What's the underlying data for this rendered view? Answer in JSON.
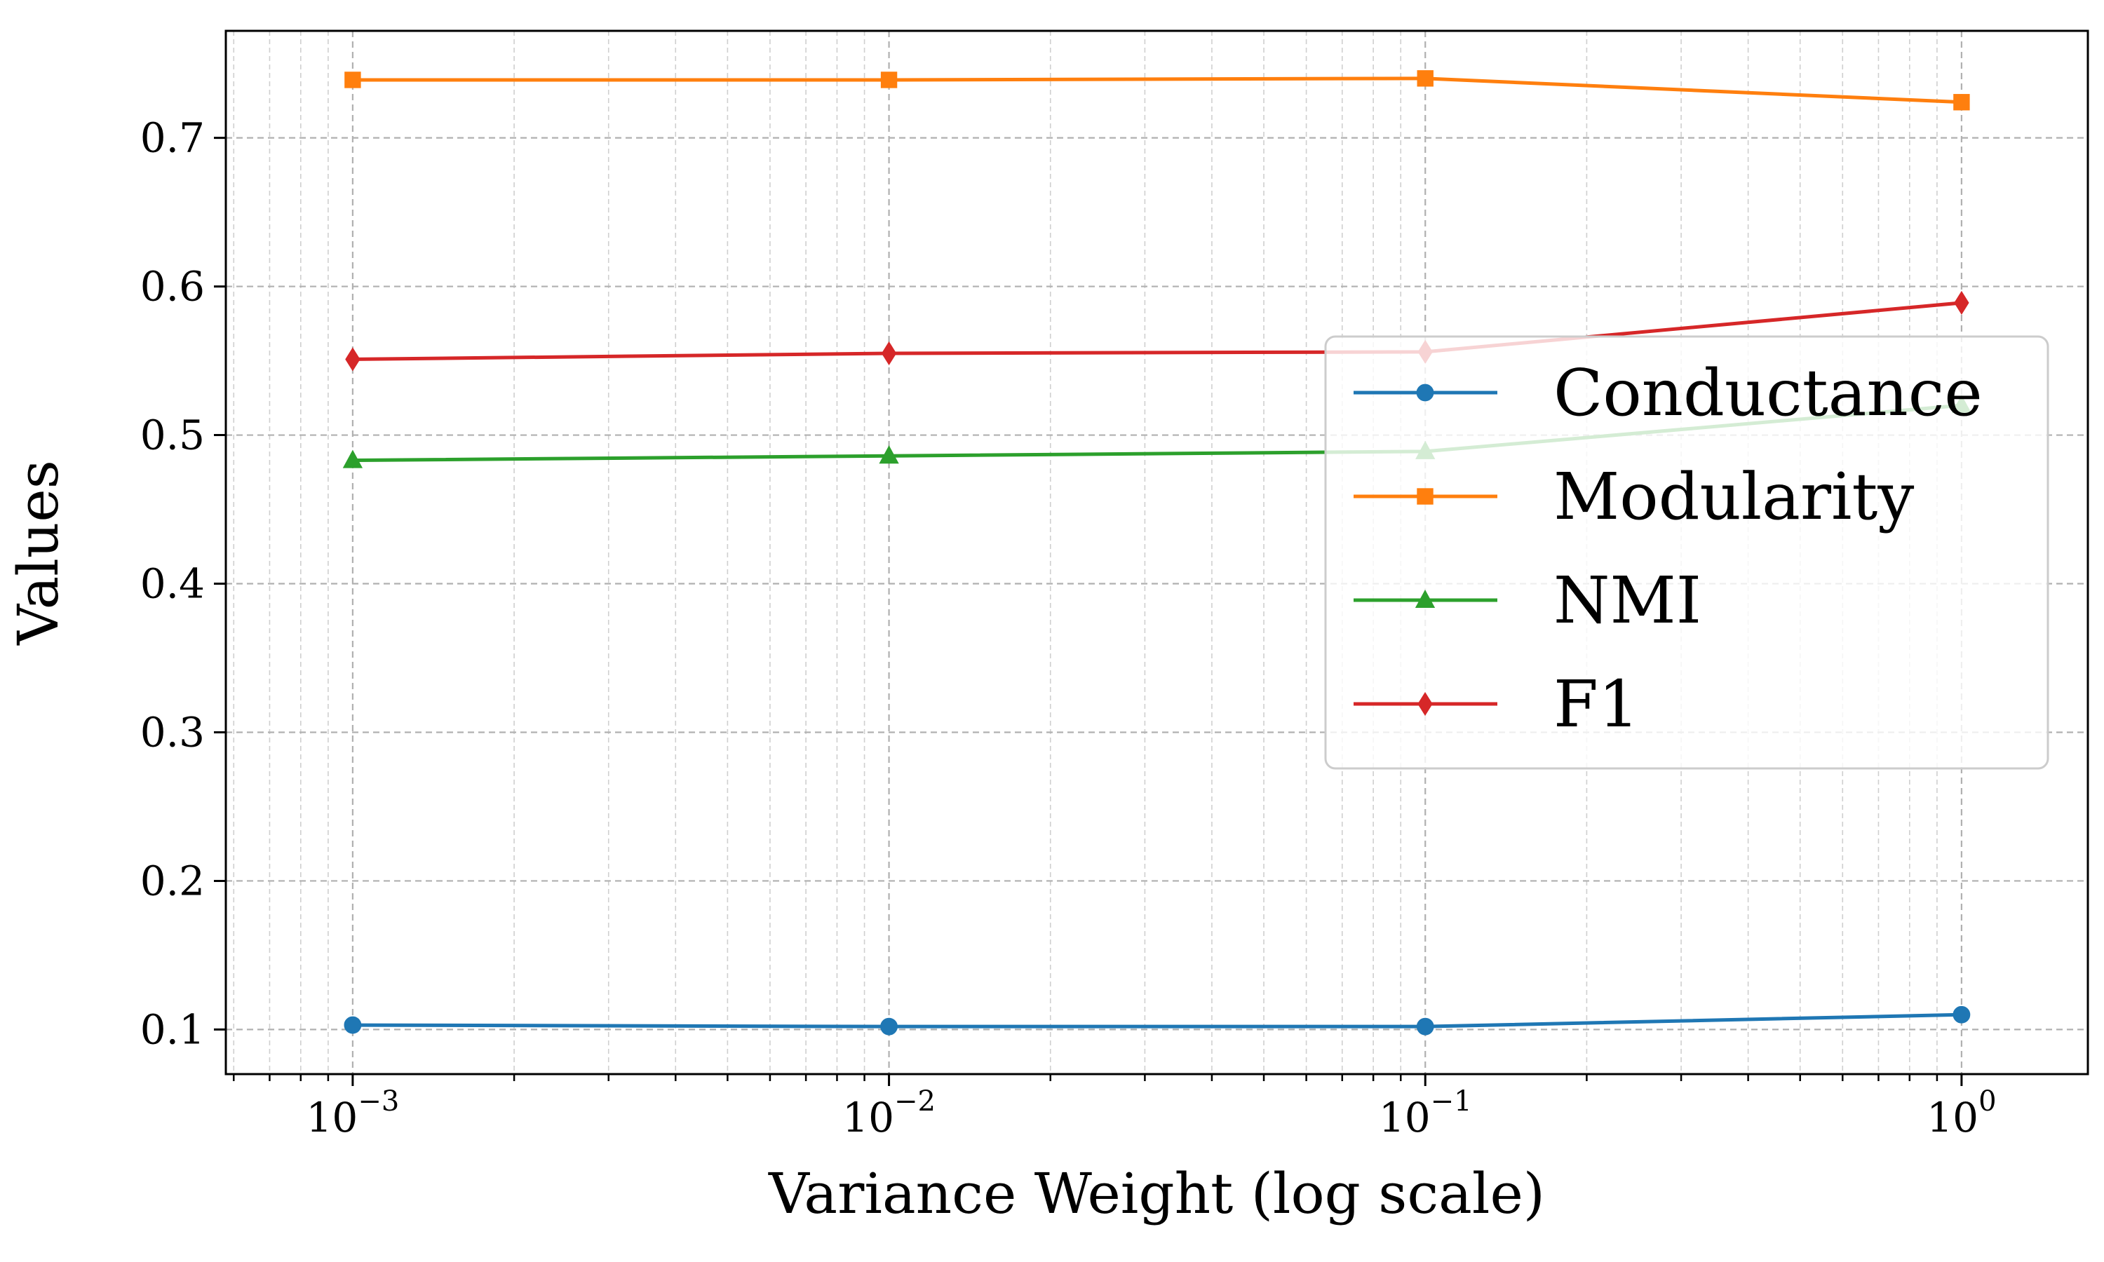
{
  "chart_data": {
    "type": "line",
    "title": "",
    "xlabel": "Variance Weight (log scale)",
    "ylabel": "Values",
    "xscale": "log",
    "x": [
      0.001,
      0.01,
      0.1,
      1
    ],
    "xlim": [
      0.00058,
      1.72
    ],
    "ylim": [
      0.07,
      0.772
    ],
    "xticks": [
      {
        "value": 0.001,
        "base": "10",
        "exp": "−3"
      },
      {
        "value": 0.01,
        "base": "10",
        "exp": "−2"
      },
      {
        "value": 0.1,
        "base": "10",
        "exp": "−1"
      },
      {
        "value": 1,
        "base": "10",
        "exp": "0"
      }
    ],
    "yticks": [
      {
        "value": 0.1,
        "label": "0.1"
      },
      {
        "value": 0.2,
        "label": "0.2"
      },
      {
        "value": 0.3,
        "label": "0.3"
      },
      {
        "value": 0.4,
        "label": "0.4"
      },
      {
        "value": 0.5,
        "label": "0.5"
      },
      {
        "value": 0.6,
        "label": "0.6"
      },
      {
        "value": 0.7,
        "label": "0.7"
      }
    ],
    "grid": true,
    "legend_position": "center-right",
    "series": [
      {
        "name": "Conductance",
        "color": "#1f77b4",
        "marker": "circle",
        "values": [
          0.103,
          0.102,
          0.102,
          0.11
        ]
      },
      {
        "name": "Modularity",
        "color": "#ff7f0e",
        "marker": "square",
        "values": [
          0.739,
          0.739,
          0.74,
          0.724
        ]
      },
      {
        "name": "NMI",
        "color": "#2ca02c",
        "marker": "triangle",
        "values": [
          0.483,
          0.486,
          0.489,
          0.52
        ]
      },
      {
        "name": "F1",
        "color": "#d62728",
        "marker": "diamond",
        "values": [
          0.551,
          0.555,
          0.556,
          0.589
        ]
      }
    ]
  }
}
